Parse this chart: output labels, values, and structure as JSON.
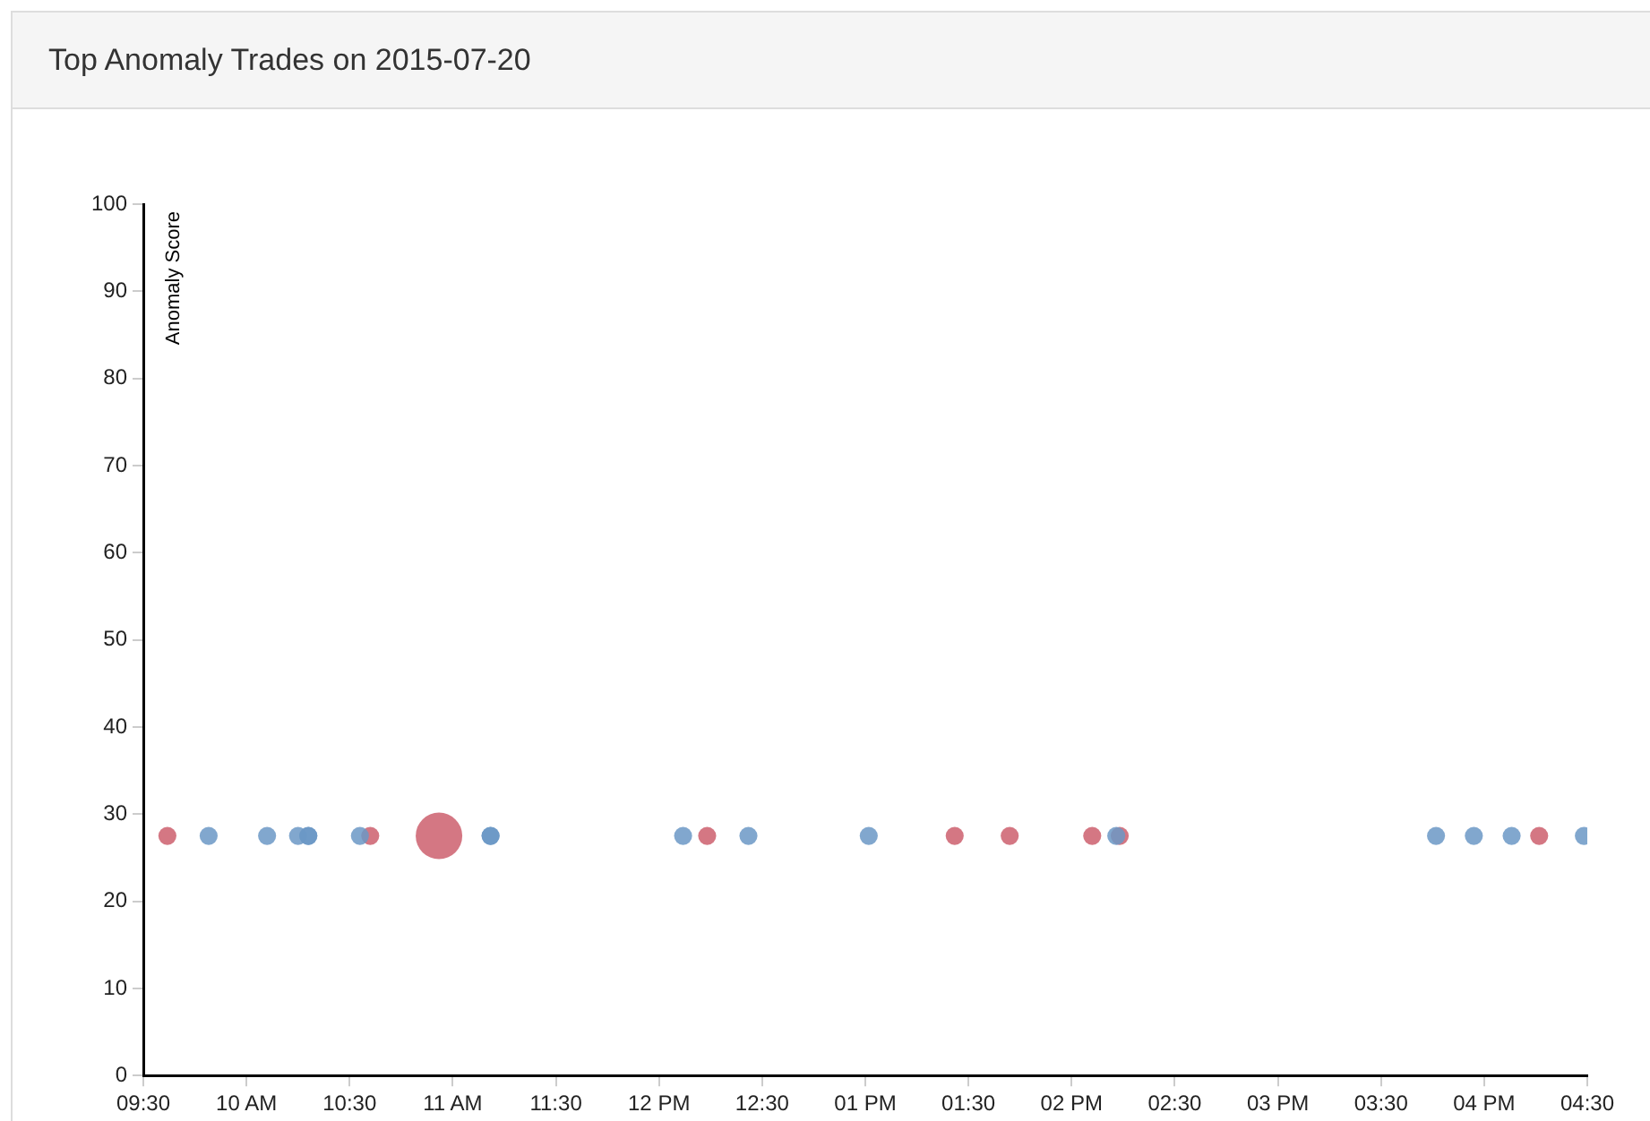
{
  "chart_data": {
    "type": "bubble",
    "title": "Top Anomaly Trades on 2015-07-20",
    "ylabel": "Anomaly Score",
    "xlim": [
      "2015-07-20T09:30",
      "2015-07-20T16:30"
    ],
    "xticks": [
      {
        "value": "2015-07-20T09:30",
        "label": "09:30"
      },
      {
        "value": "2015-07-20T10:00",
        "label": "10 AM"
      },
      {
        "value": "2015-07-20T10:30",
        "label": "10:30"
      },
      {
        "value": "2015-07-20T11:00",
        "label": "11 AM"
      },
      {
        "value": "2015-07-20T11:30",
        "label": "11:30"
      },
      {
        "value": "2015-07-20T12:00",
        "label": "12 PM"
      },
      {
        "value": "2015-07-20T12:30",
        "label": "12:30"
      },
      {
        "value": "2015-07-20T13:00",
        "label": "01 PM"
      },
      {
        "value": "2015-07-20T13:30",
        "label": "01:30"
      },
      {
        "value": "2015-07-20T14:00",
        "label": "02 PM"
      },
      {
        "value": "2015-07-20T14:30",
        "label": "02:30"
      },
      {
        "value": "2015-07-20T15:00",
        "label": "03 PM"
      },
      {
        "value": "2015-07-20T15:30",
        "label": "03:30"
      },
      {
        "value": "2015-07-20T16:00",
        "label": "04 PM"
      },
      {
        "value": "2015-07-20T16:30",
        "label": "04:30"
      }
    ],
    "ylim": [
      0,
      100
    ],
    "yticks": [
      0,
      10,
      20,
      30,
      40,
      50,
      60,
      70,
      80,
      90,
      100
    ],
    "grid": false,
    "legend": false,
    "series": [
      {
        "color": "#6b98c6",
        "x": [
          "2015-07-20T09:49",
          "2015-07-20T10:06",
          "2015-07-20T10:15",
          "2015-07-20T10:18",
          "2015-07-20T10:18",
          "2015-07-20T10:33",
          "2015-07-20T11:11",
          "2015-07-20T11:11",
          "2015-07-20T12:07",
          "2015-07-20T12:26",
          "2015-07-20T13:01",
          "2015-07-20T14:13",
          "2015-07-20T15:46",
          "2015-07-20T15:57",
          "2015-07-20T16:08",
          "2015-07-20T16:29"
        ],
        "values": [
          27.5,
          27.5,
          27.5,
          27.5,
          27.5,
          27.5,
          27.5,
          27.5,
          27.5,
          27.5,
          27.5,
          27.5,
          27.5,
          27.5,
          27.5,
          27.5
        ],
        "sizes": [
          0.15,
          0.15,
          0.15,
          0.15,
          0.15,
          0.15,
          0.15,
          0.15,
          0.15,
          0.15,
          0.15,
          0.15,
          0.15,
          0.15,
          0.15,
          0.15
        ]
      },
      {
        "color": "#cc5f6d",
        "x": [
          "2015-07-20T09:37",
          "2015-07-20T10:36",
          "2015-07-20T10:56",
          "2015-07-20T12:14",
          "2015-07-20T13:26",
          "2015-07-20T13:42",
          "2015-07-20T14:06",
          "2015-07-20T14:14",
          "2015-07-20T16:16"
        ],
        "values": [
          27.5,
          27.5,
          27.5,
          27.5,
          27.5,
          27.5,
          27.5,
          27.5,
          27.5
        ],
        "sizes": [
          0.15,
          0.15,
          1,
          0.15,
          0.15,
          0.15,
          0.15,
          0.15,
          0.15
        ]
      }
    ]
  }
}
